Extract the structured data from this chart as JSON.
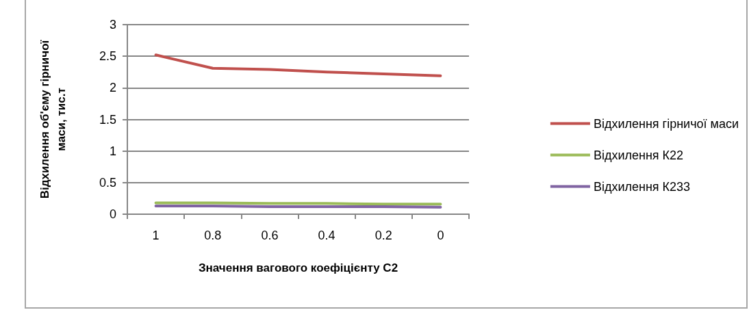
{
  "chart_data": {
    "type": "line",
    "xlabel": "Значення вагового коефіцієнту С2",
    "ylabel": "Відхилення об'єму гірничої\nмаси, тис.т",
    "categories": [
      "1",
      "0.8",
      "0.6",
      "0.4",
      "0.2",
      "0"
    ],
    "series": [
      {
        "name": "Відхилення гірничої маси",
        "color": "#c0504d",
        "values": [
          2.52,
          2.31,
          2.29,
          2.25,
          2.22,
          2.19
        ]
      },
      {
        "name": "Відхилення К22",
        "color": "#9bbb59",
        "values": [
          0.18,
          0.18,
          0.17,
          0.17,
          0.16,
          0.16
        ]
      },
      {
        "name": "Відхилення К233",
        "color": "#8064a2",
        "values": [
          0.13,
          0.13,
          0.12,
          0.12,
          0.12,
          0.11
        ]
      }
    ],
    "ylim": [
      0,
      3
    ],
    "yticks": [
      0,
      0.5,
      1,
      1.5,
      2,
      2.5,
      3
    ],
    "grid": "y",
    "legend": "right",
    "marker": "none",
    "line_style": "solid"
  }
}
